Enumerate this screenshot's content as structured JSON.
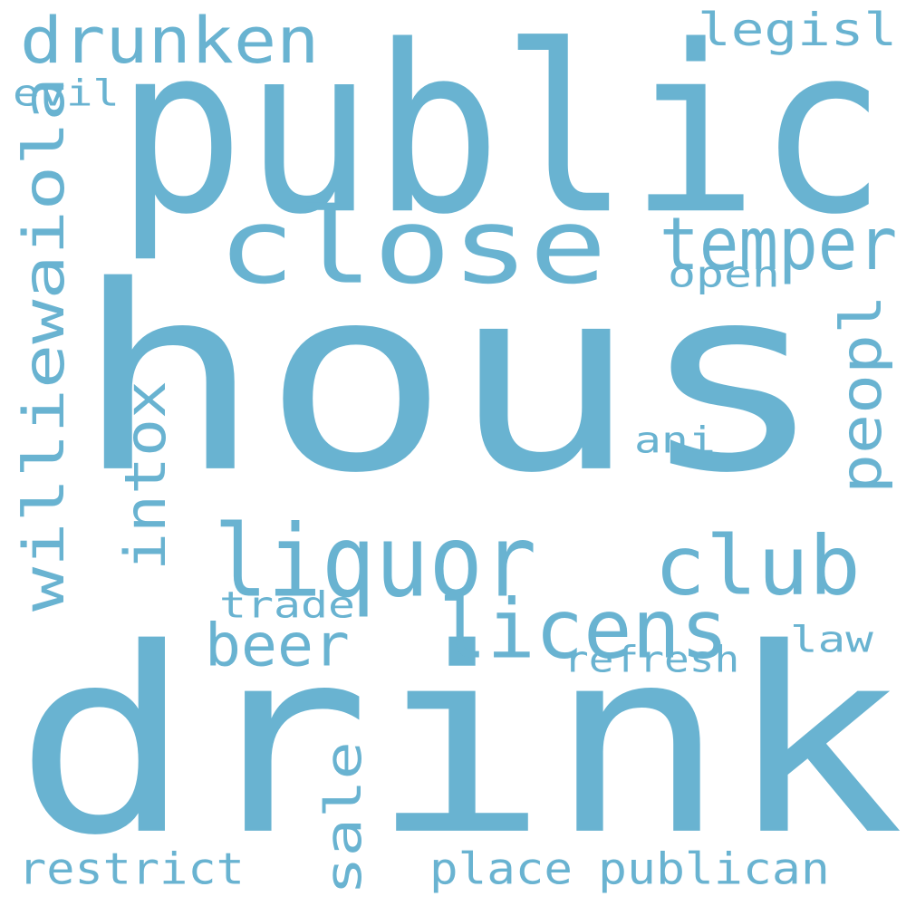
{
  "word_color": "#69b3d1",
  "background_color": "#ffffff",
  "words": {
    "hous": "hous",
    "drink": "drink",
    "public": "public",
    "close": "close",
    "liquor": "liquor",
    "club": "club",
    "licens": "licens",
    "drunken": "drunken",
    "temper": "temper",
    "willie": "williewaiola",
    "intox": "intox",
    "peopl": "peopl",
    "beer": "beer",
    "sale": "sale",
    "restrict": "restrict",
    "place": "place",
    "publican": "publican",
    "legisl": "legisl",
    "evil": "evil",
    "open": "open",
    "ani": "ani",
    "trade": "trade",
    "law": "law",
    "refresh": "refresh"
  }
}
